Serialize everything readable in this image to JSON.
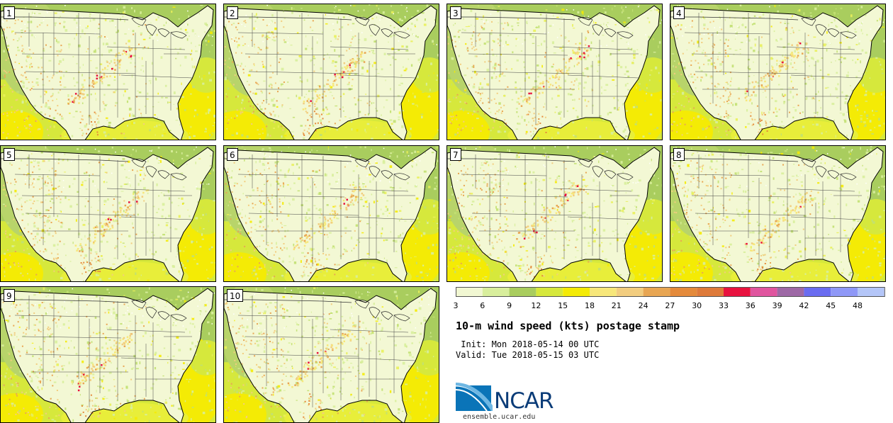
{
  "panels": [
    {
      "label": "1"
    },
    {
      "label": "2"
    },
    {
      "label": "3"
    },
    {
      "label": "4"
    },
    {
      "label": "5"
    },
    {
      "label": "6"
    },
    {
      "label": "7"
    },
    {
      "label": "8"
    },
    {
      "label": "9"
    },
    {
      "label": "10"
    }
  ],
  "colorbar": {
    "ticks": [
      "3",
      "6",
      "9",
      "12",
      "15",
      "18",
      "21",
      "24",
      "27",
      "30",
      "33",
      "36",
      "39",
      "42",
      "45",
      "48"
    ],
    "colors": [
      "#f1f7d2",
      "#d8ee9c",
      "#a9cd5e",
      "#d6e83c",
      "#f4eb05",
      "#f7e77a",
      "#f2cd7f",
      "#e8a653",
      "#e48a3b",
      "#de7a3a",
      "#e8123f",
      "#e0559f",
      "#9e69a6",
      "#6a6cf0",
      "#8f98f7",
      "#b4c6f8"
    ]
  },
  "title": "10-m wind speed (kts) postage stamp",
  "init": " Init: Mon 2018-05-14 00 UTC",
  "valid": "Valid: Tue 2018-05-15 03 UTC",
  "logo": {
    "text": "NCAR",
    "url": "ensemble.ucar.edu",
    "blue": "#0a74b8"
  }
}
